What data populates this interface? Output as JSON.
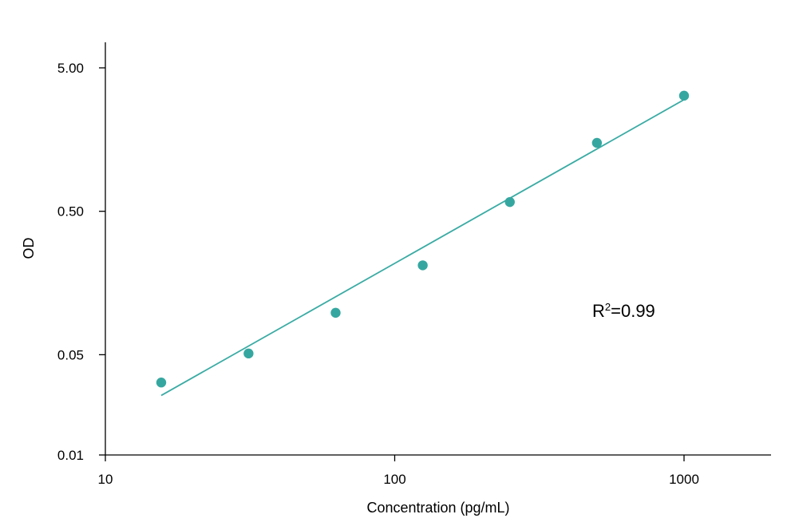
{
  "chart_data": {
    "type": "scatter",
    "title": "",
    "xlabel": "Concentration (pg/mL)",
    "ylabel": "OD",
    "xscale": "log",
    "yscale": "log",
    "xlim": [
      10,
      2000
    ],
    "ylim": [
      0.01,
      10
    ],
    "xticks": [
      10,
      100,
      1000
    ],
    "xtick_labels": [
      "10",
      "100",
      "1000"
    ],
    "yticks": [
      0.01,
      0.05,
      0.5,
      5
    ],
    "ytick_labels": [
      "0.01",
      "0.05",
      "0.50",
      "5.00"
    ],
    "grid": false,
    "legend": "none",
    "series": [
      {
        "points": [
          {
            "x": 15.6,
            "y": 0.032
          },
          {
            "x": 31.25,
            "y": 0.051
          },
          {
            "x": 62.5,
            "y": 0.098
          },
          {
            "x": 125,
            "y": 0.21
          },
          {
            "x": 250,
            "y": 0.58
          },
          {
            "x": 500,
            "y": 1.5
          },
          {
            "x": 1000,
            "y": 3.2
          }
        ]
      }
    ],
    "fit_line": {
      "x": [
        15.6,
        1000
      ],
      "y": [
        0.026,
        3.0
      ]
    },
    "annotation": {
      "prefix": "R",
      "superscript": "2",
      "suffix": "=0.99"
    },
    "colors": {
      "marker": "#35a7a0",
      "line": "#3aaba4",
      "axis": "#000000"
    }
  }
}
